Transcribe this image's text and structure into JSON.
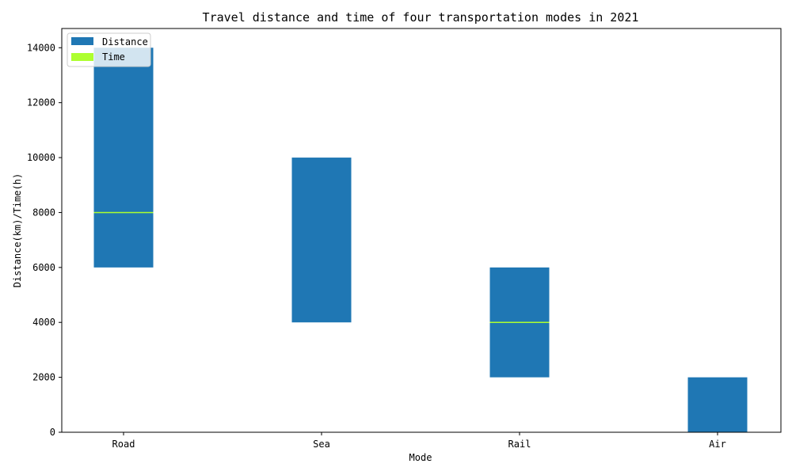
{
  "chart_data": {
    "type": "bar",
    "title": "Travel distance and time of four transportation modes in 2021",
    "xlabel": "Mode",
    "ylabel": "Distance(km)/Time(h)",
    "categories": [
      "Road",
      "Sea",
      "Rail",
      "Air"
    ],
    "ylim": [
      0,
      14700
    ],
    "yticks": [
      0,
      2000,
      4000,
      6000,
      8000,
      10000,
      12000,
      14000
    ],
    "grid": false,
    "legend_position": "top-left",
    "series": [
      {
        "name": "Distance",
        "kind": "floating-bar",
        "color": "#1f77b4",
        "bottom": [
          6000,
          4000,
          2000,
          0
        ],
        "top": [
          14000,
          10000,
          6000,
          2000
        ]
      },
      {
        "name": "Time",
        "kind": "marker-line",
        "color": "#adff2f",
        "values": [
          8000,
          null,
          4000,
          null
        ]
      }
    ]
  }
}
